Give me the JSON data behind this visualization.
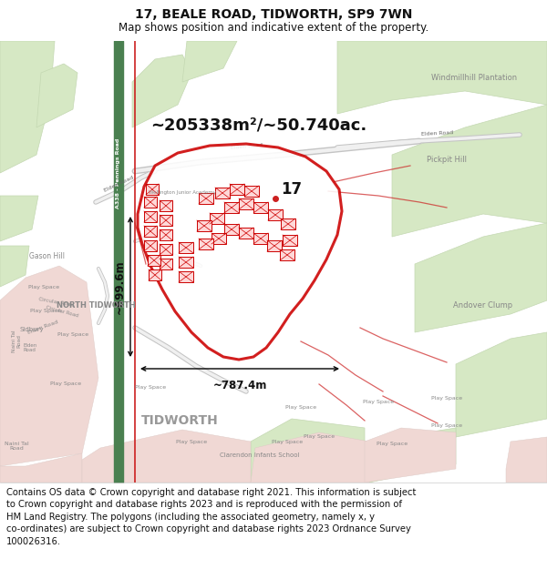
{
  "title": "17, BEALE ROAD, TIDWORTH, SP9 7WN",
  "subtitle": "Map shows position and indicative extent of the property.",
  "area_text": "~205338m²/~50.740ac.",
  "height_text": "~699.6m",
  "width_text": "~787.4m",
  "property_number": "17",
  "footer_lines": [
    "Contains OS data © Crown copyright and database right 2021. This information is subject",
    "to Crown copyright and database rights 2023 and is reproduced with the permission of",
    "HM Land Registry. The polygons (including the associated geometry, namely x, y",
    "co-ordinates) are subject to Crown copyright and database rights 2023 Ordnance Survey",
    "100026316."
  ],
  "title_fontsize": 10,
  "subtitle_fontsize": 8.5,
  "area_fontsize": 13,
  "number_fontsize": 12,
  "dim_fontsize": 8.5,
  "footer_fontsize": 7.2,
  "map_facecolor": "#f0ece6",
  "header_facecolor": "#ffffff",
  "footer_facecolor": "#ffffff",
  "green_color": "#d6e8c4",
  "green_edge": "#c4d8b2",
  "urban_color": "#f0d8d4",
  "urban_edge": "#dcc8c4",
  "road_green_color": "#4a8050",
  "road_red_color": "#cc2020",
  "road_grey_outer": "#c4c4c4",
  "road_grey_inner": "#f0f0f0",
  "property_edge": "#cc0000",
  "property_face": "#ffffff",
  "building_face": "#ffd8d8",
  "building_edge": "#cc0000",
  "text_grey": "#888888",
  "text_dark": "#111111",
  "text_medium": "#666666"
}
